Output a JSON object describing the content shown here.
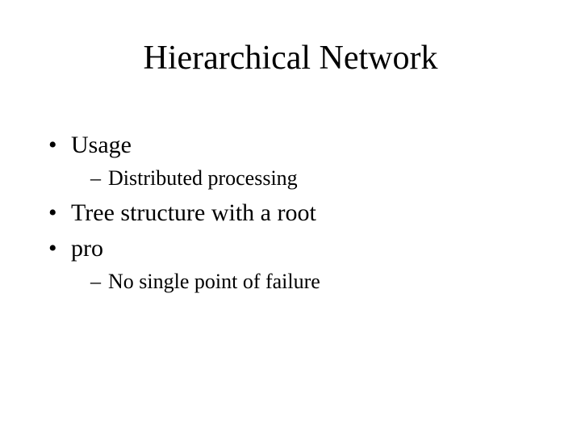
{
  "title": "Hierarchical Network",
  "bullets": {
    "b0": {
      "text": "Usage",
      "sub": {
        "s0": "Distributed processing"
      }
    },
    "b1": {
      "text": "Tree structure with a root"
    },
    "b2": {
      "text": "pro",
      "sub": {
        "s0": "No single point of failure"
      }
    }
  },
  "style": {
    "background_color": "#ffffff",
    "text_color": "#000000",
    "font_family": "Times New Roman",
    "title_fontsize": 42,
    "level1_fontsize": 30,
    "level2_fontsize": 26,
    "level1_marker": "•",
    "level2_marker": "–"
  }
}
